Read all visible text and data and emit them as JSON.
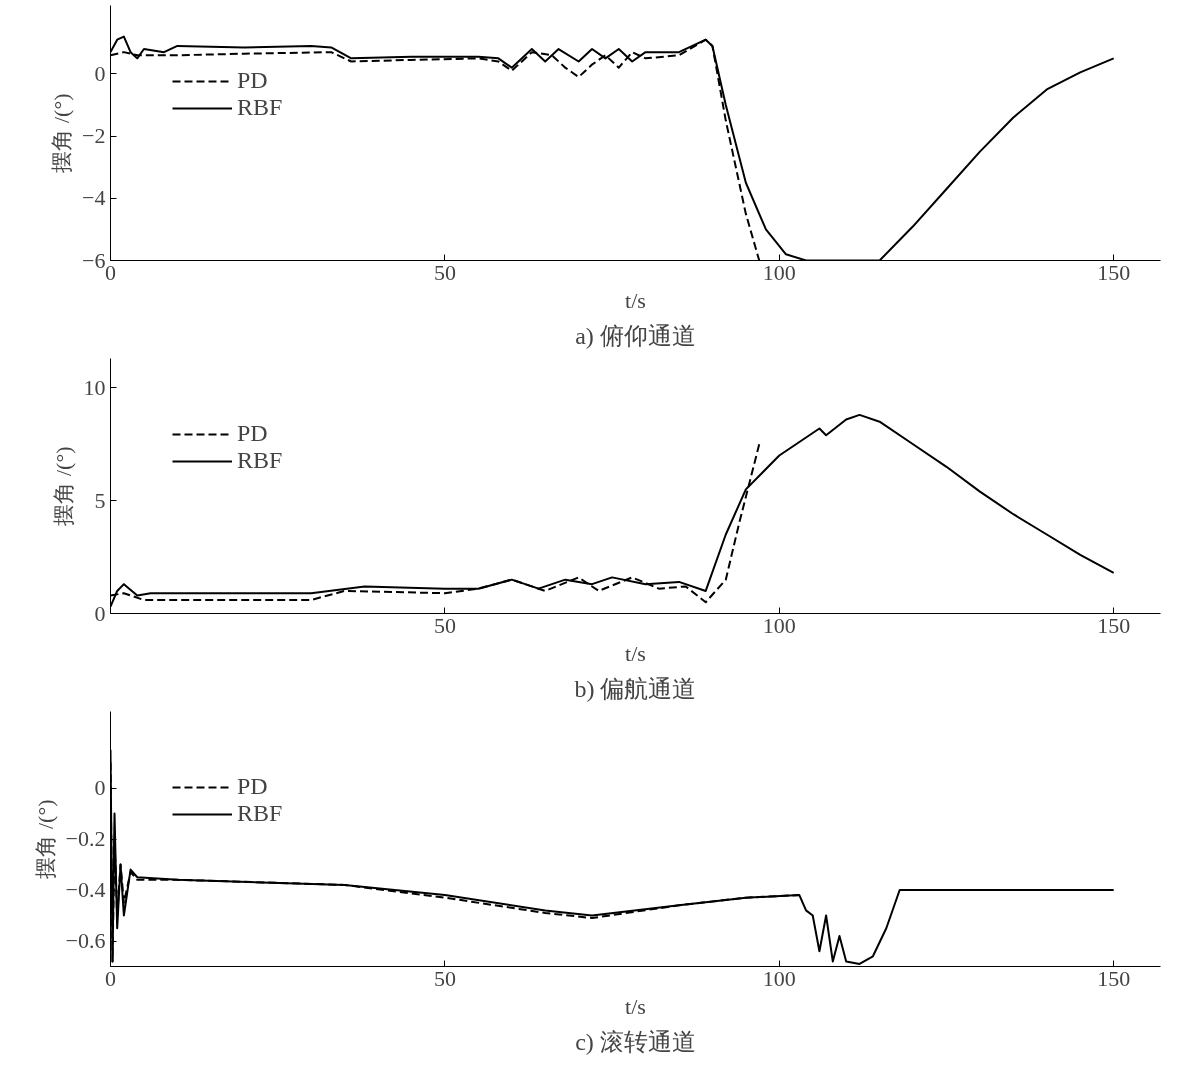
{
  "chart_data": [
    {
      "type": "line",
      "title": "a) 俯仰通道",
      "xlabel": "t/s",
      "ylabel": "摆角 /(°)",
      "xlim": [
        0,
        157
      ],
      "ylim": [
        -6,
        2.2
      ],
      "xticks": [
        0,
        50,
        100,
        150
      ],
      "yticks": [
        -6,
        -4,
        -2,
        0
      ],
      "grid": false,
      "legend": "top left",
      "series": [
        {
          "name": "PD",
          "color": "#000000",
          "line_style": "dashed",
          "x": [
            0,
            2,
            4,
            6,
            10,
            20,
            33,
            36,
            45,
            55,
            58,
            60,
            63,
            66,
            68,
            70,
            72,
            74,
            76,
            78,
            80,
            85,
            89,
            90,
            92,
            95,
            97
          ],
          "values": [
            0.6,
            0.7,
            0.6,
            0.6,
            0.6,
            0.65,
            0.7,
            0.4,
            0.45,
            0.5,
            0.4,
            0.1,
            0.7,
            0.6,
            0.2,
            -0.1,
            0.3,
            0.6,
            0.2,
            0.7,
            0.5,
            0.6,
            1.1,
            0.9,
            -1.5,
            -4.5,
            -6.0
          ]
        },
        {
          "name": "RBF",
          "color": "#000000",
          "line_style": "solid",
          "x": [
            0,
            1,
            2,
            3,
            4,
            5,
            8,
            10,
            20,
            30,
            33,
            36,
            45,
            55,
            58,
            60,
            63,
            65,
            67,
            70,
            72,
            74,
            76,
            78,
            80,
            85,
            89,
            90,
            92,
            95,
            98,
            101,
            104,
            110,
            115,
            120,
            125,
            130,
            135,
            140,
            145,
            150
          ],
          "values": [
            0.7,
            1.1,
            1.2,
            0.7,
            0.5,
            0.8,
            0.7,
            0.9,
            0.85,
            0.9,
            0.85,
            0.5,
            0.55,
            0.55,
            0.5,
            0.2,
            0.8,
            0.4,
            0.8,
            0.4,
            0.8,
            0.5,
            0.8,
            0.4,
            0.7,
            0.7,
            1.1,
            0.9,
            -1.0,
            -3.5,
            -5.0,
            -5.8,
            -6.0,
            -6.0,
            -6.0,
            -4.9,
            -3.7,
            -2.5,
            -1.4,
            -0.5,
            0.05,
            0.5
          ]
        }
      ]
    },
    {
      "type": "line",
      "title": "b) 偏航通道",
      "xlabel": "t/s",
      "ylabel": "摆角 /(°)",
      "xlim": [
        0,
        157
      ],
      "ylim": [
        0,
        11.3
      ],
      "xticks": [
        50,
        100,
        150
      ],
      "yticks": [
        0,
        5,
        10
      ],
      "grid": false,
      "legend": "top left",
      "series": [
        {
          "name": "PD",
          "color": "#000000",
          "line_style": "dashed",
          "x": [
            0,
            2,
            5,
            15,
            30,
            35,
            50,
            55,
            60,
            65,
            70,
            73,
            78,
            82,
            86,
            89,
            92,
            94,
            97
          ],
          "values": [
            0.8,
            0.9,
            0.6,
            0.6,
            0.6,
            1.0,
            0.9,
            1.1,
            1.5,
            1.0,
            1.6,
            1.0,
            1.6,
            1.1,
            1.2,
            0.5,
            1.5,
            4.0,
            7.5
          ]
        },
        {
          "name": "RBF",
          "color": "#000000",
          "line_style": "solid",
          "x": [
            0,
            1,
            2,
            4,
            6,
            10,
            20,
            30,
            38,
            50,
            55,
            60,
            64,
            68,
            72,
            75,
            80,
            85,
            89,
            92,
            95,
            100,
            105,
            106,
            107,
            110,
            112,
            115,
            120,
            125,
            130,
            135,
            140,
            145,
            150
          ],
          "values": [
            0.3,
            1.0,
            1.3,
            0.8,
            0.9,
            0.9,
            0.9,
            0.9,
            1.2,
            1.1,
            1.1,
            1.5,
            1.1,
            1.5,
            1.3,
            1.6,
            1.3,
            1.4,
            1.0,
            3.5,
            5.5,
            7.0,
            8.0,
            8.2,
            7.9,
            8.6,
            8.8,
            8.5,
            7.5,
            6.5,
            5.4,
            4.4,
            3.5,
            2.6,
            1.8
          ]
        }
      ]
    },
    {
      "type": "line",
      "title": "c) 滚转通道",
      "xlabel": "t/s",
      "ylabel": "摆角 /(°)",
      "xlim": [
        0,
        157
      ],
      "ylim": [
        -0.7,
        0.3
      ],
      "xticks": [
        0,
        50,
        100,
        150
      ],
      "yticks": [
        -0.6,
        -0.4,
        -0.2,
        0
      ],
      "grid": false,
      "legend": "top left",
      "series": [
        {
          "name": "PD",
          "color": "#000000",
          "line_style": "dashed",
          "x": [
            0,
            0.3,
            0.6,
            1,
            1.5,
            2,
            3,
            4,
            10,
            35,
            50,
            65,
            72,
            85,
            95,
            103
          ],
          "values": [
            0.1,
            -0.68,
            -0.2,
            -0.5,
            -0.3,
            -0.45,
            -0.33,
            -0.36,
            -0.36,
            -0.38,
            -0.43,
            -0.49,
            -0.51,
            -0.46,
            -0.43,
            -0.42
          ]
        },
        {
          "name": "RBF",
          "color": "#000000",
          "line_style": "solid",
          "x": [
            0,
            0.3,
            0.6,
            1,
            1.5,
            2,
            3,
            4,
            10,
            35,
            50,
            65,
            72,
            85,
            95,
            103,
            104,
            105,
            106,
            107,
            108,
            109,
            110,
            112,
            114,
            116,
            118,
            150
          ],
          "values": [
            0.15,
            -0.68,
            -0.1,
            -0.55,
            -0.3,
            -0.5,
            -0.32,
            -0.35,
            -0.36,
            -0.38,
            -0.42,
            -0.48,
            -0.5,
            -0.46,
            -0.43,
            -0.42,
            -0.48,
            -0.5,
            -0.64,
            -0.5,
            -0.68,
            -0.58,
            -0.68,
            -0.69,
            -0.66,
            -0.55,
            -0.4,
            -0.4
          ]
        }
      ]
    }
  ]
}
